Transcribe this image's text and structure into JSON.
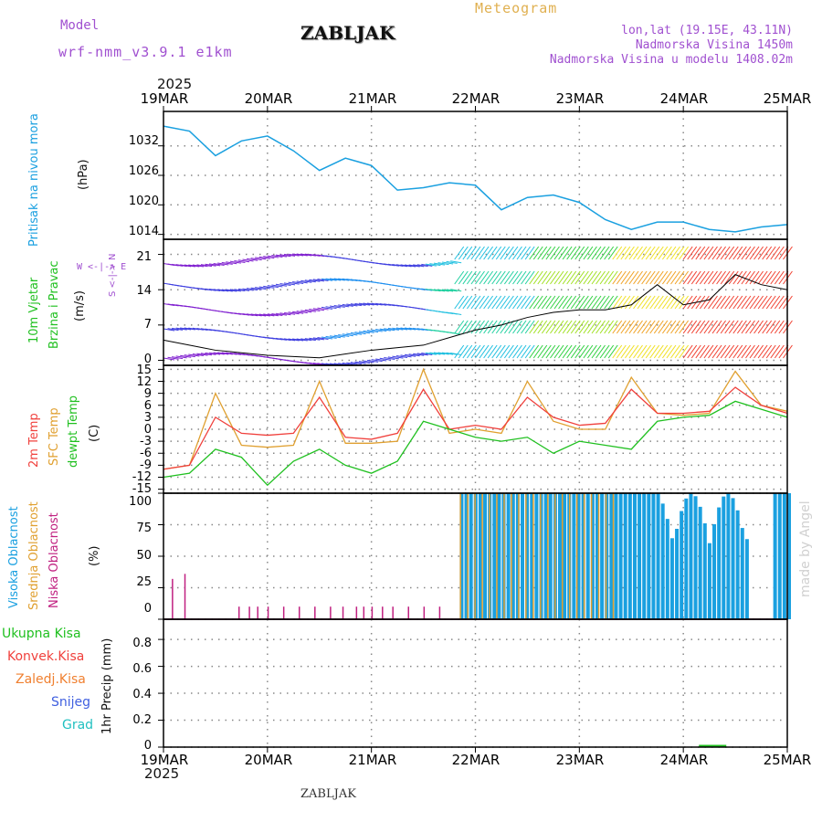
{
  "header": {
    "model_label": "Model",
    "model_name": "wrf-nmm_v3.9.1 e1km",
    "station": "ZABLJAK",
    "meteogram_label": "Meteogram",
    "lonlat": "lon,lat (19.15E, 43.11N)",
    "elevation": "Nadmorska Visina 1450m",
    "model_elevation": "Nadmorska Visina u modelu 1408.02m",
    "watermark": "made by Angel",
    "footer_station": "ZABLJAK"
  },
  "time_axis": {
    "year": "2025",
    "ticks": [
      "19MAR",
      "20MAR",
      "21MAR",
      "22MAR",
      "23MAR",
      "24MAR",
      "25MAR"
    ]
  },
  "colors": {
    "pressure": "#1aa0e0",
    "temp2m": "#f0403c",
    "sfc": "#e0a030",
    "dewpt": "#20c020",
    "cloud_high": "#1aa0e0",
    "cloud_mid": "#e0a030",
    "cloud_low": "#c02080",
    "wind_speed": "#000000",
    "precip_total": "#20c020"
  },
  "panels": {
    "pressure": {
      "labels": [
        "Pritisak na nivou mora"
      ],
      "unit": "(hPa)",
      "yticks": [
        "1014",
        "1020",
        "1026",
        "1032"
      ]
    },
    "wind": {
      "labels": [
        "10m Vjetar",
        "Brzina i Pravac"
      ],
      "unit": "(m/s)",
      "compass": "W <-|-> E",
      "compass_vert": "S <-|-> N",
      "yticks": [
        "0",
        "7",
        "14",
        "21"
      ]
    },
    "temperature": {
      "labels": [
        "2m Temp",
        "SFC Temp",
        "dewpt Temp"
      ],
      "unit": "(C)",
      "yticks": [
        "-15",
        "-12",
        "-9",
        "-6",
        "-3",
        "0",
        "3",
        "6",
        "9",
        "12",
        "15"
      ]
    },
    "clouds": {
      "labels": [
        "Visoka Oblacnost",
        "Srednja Oblacnost",
        "Niska Oblacnost"
      ],
      "unit": "(%)",
      "yticks": [
        "0",
        "25",
        "50",
        "75",
        "100"
      ]
    },
    "precip": {
      "labels": [
        "Ukupna Kisa",
        "Konvek.Kisa",
        "Zaledj.Kisa",
        "Snijeg",
        "Grad"
      ],
      "unit": "1hr Precip (mm)",
      "yticks": [
        "0",
        "0.2",
        "0.4",
        "0.6",
        "0.8"
      ]
    }
  },
  "chart_data": [
    {
      "type": "line",
      "series": [
        {
          "name": "Pritisak na nivou mora",
          "x": [
            0,
            0.25,
            0.5,
            0.75,
            1,
            1.25,
            1.5,
            1.75,
            2,
            2.25,
            2.5,
            2.75,
            3,
            3.25,
            3.5,
            3.75,
            4,
            4.25,
            4.5,
            4.75,
            5,
            5.25,
            5.5,
            5.75,
            6
          ],
          "y": [
            1036,
            1035,
            1030,
            1033,
            1034,
            1031,
            1027,
            1029.5,
            1028,
            1023,
            1023.5,
            1024.5,
            1024,
            1019,
            1021.5,
            1022,
            1020.5,
            1017,
            1015,
            1016.5,
            1016.5,
            1015,
            1014.5,
            1015.5,
            1016
          ]
        }
      ],
      "ylim": [
        1013,
        1039
      ]
    },
    {
      "type": "line",
      "series": [
        {
          "name": "Brzina",
          "x": [
            0,
            0.5,
            1,
            1.5,
            2,
            2.5,
            3,
            3.25,
            3.5,
            3.75,
            4,
            4.25,
            4.5,
            4.75,
            5,
            5.25,
            5.5,
            5.75,
            6
          ],
          "y": [
            4,
            2,
            1,
            0.5,
            2,
            3,
            6,
            7,
            8.5,
            9.5,
            10,
            10,
            11,
            15,
            11,
            12,
            17,
            15,
            14
          ]
        }
      ],
      "ylim": [
        -1,
        24
      ]
    },
    {
      "type": "line",
      "series": [
        {
          "name": "2m Temp",
          "x": [
            0,
            0.25,
            0.5,
            0.75,
            1,
            1.25,
            1.5,
            1.75,
            2,
            2.25,
            2.5,
            2.75,
            3,
            3.25,
            3.5,
            3.75,
            4,
            4.25,
            4.5,
            4.75,
            5,
            5.25,
            5.5,
            5.75,
            6
          ],
          "y": [
            -10,
            -9,
            3,
            -1,
            -1.5,
            -1,
            8,
            -2,
            -2.5,
            -1,
            10,
            0,
            1,
            0,
            8,
            3,
            1,
            1.5,
            10,
            4,
            4,
            4.5,
            10.5,
            6,
            4
          ]
        },
        {
          "name": "SFC Temp",
          "x": [
            0,
            0.25,
            0.5,
            0.75,
            1,
            1.25,
            1.5,
            1.75,
            2,
            2.25,
            2.5,
            2.75,
            3,
            3.25,
            3.5,
            3.75,
            4,
            4.25,
            4.5,
            4.75,
            5,
            5.25,
            5.5,
            5.75,
            6
          ],
          "y": [
            -10,
            -9,
            9,
            -4,
            -4.5,
            -4,
            12,
            -3.5,
            -3.5,
            -3,
            15,
            -1,
            0,
            -1,
            12,
            2,
            0,
            0,
            13,
            4,
            3.5,
            4,
            14.5,
            6,
            4.5
          ]
        },
        {
          "name": "dewpt Temp",
          "x": [
            0,
            0.25,
            0.5,
            0.75,
            1,
            1.25,
            1.5,
            1.75,
            2,
            2.25,
            2.5,
            2.75,
            3,
            3.25,
            3.5,
            3.75,
            4,
            4.25,
            4.5,
            4.75,
            5,
            5.25,
            5.5,
            5.75,
            6
          ],
          "y": [
            -12,
            -11,
            -5,
            -7,
            -14,
            -8,
            -5,
            -9,
            -11,
            -8,
            2,
            0,
            -2,
            -3,
            -2,
            -6,
            -3,
            -4,
            -5,
            2,
            3,
            3.5,
            7,
            5,
            3
          ]
        }
      ],
      "ylim": [
        -16,
        16
      ]
    },
    {
      "type": "bar",
      "series": [
        {
          "name": "Visoka Oblacnost",
          "x_start": 2.85,
          "x_end": 6,
          "level": 100
        },
        {
          "name": "Srednja Oblacnost",
          "x_start": 2.85,
          "x_end": 4.35,
          "level": 100
        },
        {
          "name": "Niska Oblacnost",
          "x": [
            0.08,
            0.2,
            0.72,
            0.82,
            0.9,
            1.0,
            1.15,
            1.3,
            1.45,
            1.6,
            1.72,
            1.85,
            1.92,
            2.0,
            2.1,
            2.2,
            2.35,
            2.5,
            2.65
          ],
          "y": [
            32,
            36,
            10,
            10,
            10,
            10,
            10,
            10,
            10,
            10,
            10,
            10,
            10,
            10,
            10,
            10,
            10,
            10,
            10
          ]
        }
      ],
      "ylim": [
        0,
        100
      ]
    },
    {
      "type": "bar",
      "series": [
        {
          "name": "Ukupna Kisa",
          "x": [
            5.15
          ],
          "y": [
            0.01
          ]
        },
        {
          "name": "Konvek.Kisa",
          "x": [],
          "y": []
        },
        {
          "name": "Zaledj.Kisa",
          "x": [],
          "y": []
        },
        {
          "name": "Snijeg",
          "x": [],
          "y": []
        },
        {
          "name": "Grad",
          "x": [],
          "y": []
        }
      ],
      "ylim": [
        0,
        0.95
      ]
    }
  ]
}
